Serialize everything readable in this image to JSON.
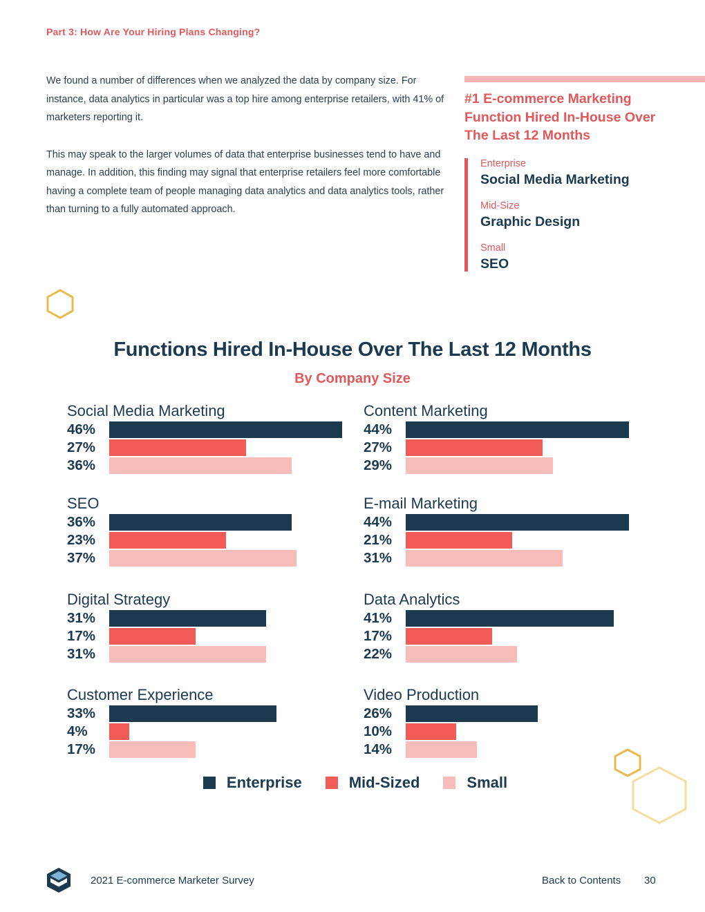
{
  "header": {
    "part_title": "Part 3: How Are Your Hiring Plans Changing?"
  },
  "intro": {
    "p1": "We found a number of differences when we analyzed the data by company size. For instance, data analytics in particular was a top hire among enterprise retailers, with 41% of marketers reporting it.",
    "p2": "This may speak to the larger volumes of data that enterprise businesses tend to have and manage. In addition, this finding may signal that enterprise retailers feel more comfortable having a complete team of people managing data analytics and data analytics tools, rather than turning to a fully automated approach."
  },
  "sidebar": {
    "title": "#1 E-commerce Marketing Function Hired In-House Over The Last 12 Months",
    "items": [
      {
        "label": "Enterprise",
        "value": "Social Media Marketing"
      },
      {
        "label": "Mid-Size",
        "value": "Graphic Design"
      },
      {
        "label": "Small",
        "value": "SEO"
      }
    ]
  },
  "colors": {
    "enterprise": "#1b3a4f",
    "mid": "#f15a55",
    "small": "#f8bcbb",
    "accent": "#e2585a",
    "hex_gold": "#e9b84a",
    "hex_light": "#f6dca0"
  },
  "chart_data": {
    "type": "bar",
    "title": "Functions Hired In-House Over The Last 12 Months",
    "subtitle": "By Company Size",
    "series_names": [
      "Enterprise",
      "Mid-Sized",
      "Small"
    ],
    "unit": "%",
    "groups": [
      {
        "name": "Social Media Marketing",
        "values": [
          46,
          27,
          36
        ]
      },
      {
        "name": "Content Marketing",
        "values": [
          44,
          27,
          29
        ]
      },
      {
        "name": "SEO",
        "values": [
          36,
          23,
          37
        ]
      },
      {
        "name": "E-mail Marketing",
        "values": [
          44,
          21,
          31
        ]
      },
      {
        "name": "Digital Strategy",
        "values": [
          31,
          17,
          31
        ]
      },
      {
        "name": "Data Analytics",
        "values": [
          41,
          17,
          22
        ]
      },
      {
        "name": "Customer Experience",
        "values": [
          33,
          4,
          17
        ]
      },
      {
        "name": "Video Production",
        "values": [
          26,
          10,
          14
        ]
      }
    ]
  },
  "footer": {
    "survey": "2021 E-commerce Marketer Survey",
    "back": "Back to Contents",
    "page": "30"
  }
}
